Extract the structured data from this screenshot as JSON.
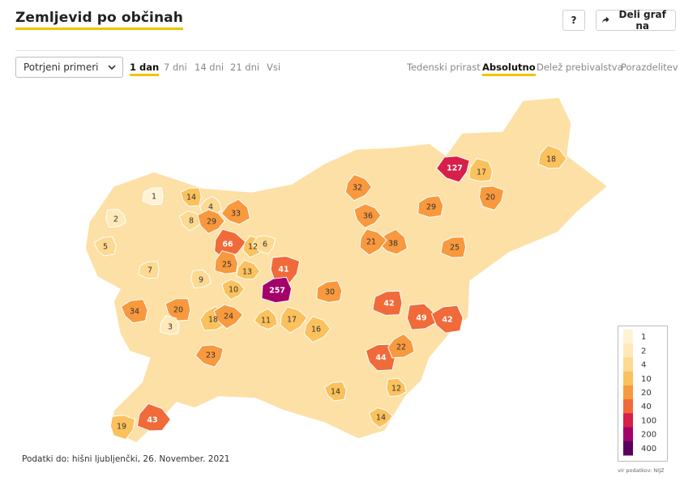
{
  "header": {
    "title": "Zemljevid po občinah",
    "help_label": "?",
    "share_label": "Deli graf na"
  },
  "controls": {
    "select_value": "Potrjeni primeri",
    "period_tabs": [
      {
        "label": "1 dan",
        "active": true
      },
      {
        "label": "7 dni",
        "active": false
      },
      {
        "label": "14 dni",
        "active": false
      },
      {
        "label": "21 dni",
        "active": false
      },
      {
        "label": "Vsi",
        "active": false
      }
    ],
    "mode_tabs": [
      {
        "label": "Tedenski prirast",
        "active": false
      },
      {
        "label": "Absolutno",
        "active": true
      },
      {
        "label": "Delež prebivalstva",
        "active": false
      },
      {
        "label": "Porazdelitev",
        "active": false
      }
    ]
  },
  "map": {
    "regions": [
      {
        "name": "r1",
        "value": 1,
        "label": "1"
      },
      {
        "name": "r2",
        "value": 2,
        "label": "2"
      },
      {
        "name": "r3",
        "value": 5,
        "label": "5"
      },
      {
        "name": "r4",
        "value": 14,
        "label": "14"
      },
      {
        "name": "r5",
        "value": 4,
        "label": "4"
      },
      {
        "name": "r6",
        "value": 8,
        "label": "8"
      },
      {
        "name": "r7",
        "value": 29,
        "label": "29"
      },
      {
        "name": "r8",
        "value": 33,
        "label": "33"
      },
      {
        "name": "r9",
        "value": 66,
        "label": "66"
      },
      {
        "name": "r10",
        "value": 12,
        "label": "12"
      },
      {
        "name": "r11",
        "value": 6,
        "label": "6"
      },
      {
        "name": "r12",
        "value": 25,
        "label": "25"
      },
      {
        "name": "r13",
        "value": 13,
        "label": "13"
      },
      {
        "name": "r14",
        "value": 41,
        "label": "41"
      },
      {
        "name": "r15",
        "value": 257,
        "label": "257"
      },
      {
        "name": "r16",
        "value": 7,
        "label": "7"
      },
      {
        "name": "r17",
        "value": 9,
        "label": "9"
      },
      {
        "name": "r18",
        "value": 34,
        "label": "34"
      },
      {
        "name": "r19",
        "value": 20,
        "label": "20"
      },
      {
        "name": "r20",
        "value": 18,
        "label": "18"
      },
      {
        "name": "r21",
        "value": 24,
        "label": "24"
      },
      {
        "name": "r22",
        "value": 10,
        "label": "10"
      },
      {
        "name": "r23",
        "value": 11,
        "label": "11"
      },
      {
        "name": "r24",
        "value": 17,
        "label": "17"
      },
      {
        "name": "r25",
        "value": 16,
        "label": "16"
      },
      {
        "name": "r26",
        "value": 23,
        "label": "23"
      },
      {
        "name": "r27",
        "value": 3,
        "label": "3"
      },
      {
        "name": "r28",
        "value": 43,
        "label": "43"
      },
      {
        "name": "r29",
        "value": 19,
        "label": "19"
      },
      {
        "name": "r30",
        "value": 30,
        "label": "30"
      },
      {
        "name": "r31",
        "value": 42,
        "label": "42"
      },
      {
        "name": "r32",
        "value": 49,
        "label": "49"
      },
      {
        "name": "r33",
        "value": 42,
        "label": "42"
      },
      {
        "name": "r34",
        "value": 44,
        "label": "44"
      },
      {
        "name": "r35",
        "value": 22,
        "label": "22"
      },
      {
        "name": "r36",
        "value": 14,
        "label": "14"
      },
      {
        "name": "r37",
        "value": 36,
        "label": "36"
      },
      {
        "name": "r38",
        "value": 38,
        "label": "38"
      },
      {
        "name": "r39",
        "value": 21,
        "label": "21"
      },
      {
        "name": "r40",
        "value": 32,
        "label": "32"
      },
      {
        "name": "r41",
        "value": 127,
        "label": "127"
      },
      {
        "name": "r42",
        "value": 17,
        "label": "17"
      },
      {
        "name": "r43",
        "value": 18,
        "label": "18"
      },
      {
        "name": "r44",
        "value": 20,
        "label": "20"
      },
      {
        "name": "r45",
        "value": 29,
        "label": "29"
      },
      {
        "name": "r46",
        "value": 25,
        "label": "25"
      },
      {
        "name": "r47",
        "value": 12,
        "label": "12"
      },
      {
        "name": "r48",
        "value": 14,
        "label": "14"
      }
    ]
  },
  "legend": {
    "stops": [
      {
        "label": "1",
        "color": "#fff3d6"
      },
      {
        "label": "2",
        "color": "#ffe9b8"
      },
      {
        "label": "4",
        "color": "#fdd991"
      },
      {
        "label": "10",
        "color": "#fbc15d"
      },
      {
        "label": "20",
        "color": "#f8993e"
      },
      {
        "label": "40",
        "color": "#f06a3a"
      },
      {
        "label": "100",
        "color": "#d81e4a"
      },
      {
        "label": "200",
        "color": "#a3006a"
      },
      {
        "label": "400",
        "color": "#5a005f"
      }
    ]
  },
  "footer": {
    "source_text": "Podatki do: hišni ljubljenčki, 26. November. 2021",
    "credit_text": "vir podatkov: NIJZ"
  }
}
